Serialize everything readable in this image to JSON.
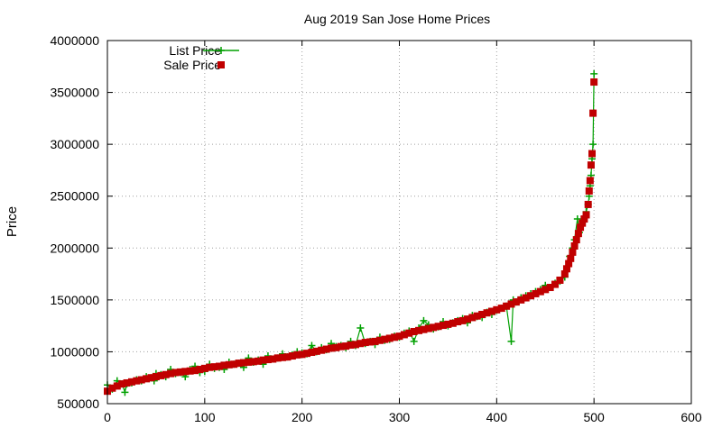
{
  "chart_data": {
    "type": "scatter",
    "title": "Aug 2019 San Jose Home Prices",
    "xlabel": "",
    "ylabel": "Price",
    "xlim": [
      0,
      600
    ],
    "ylim": [
      500000,
      4000000
    ],
    "x_ticks": [
      0,
      100,
      200,
      300,
      400,
      500,
      600
    ],
    "x_tick_labels": [
      "0",
      "100",
      "200",
      "300",
      "400",
      "500",
      "600"
    ],
    "y_ticks": [
      500000,
      1000000,
      1500000,
      2000000,
      2500000,
      3000000,
      3500000,
      4000000
    ],
    "y_tick_labels": [
      "500000",
      "1000000",
      "1500000",
      "2000000",
      "2500000",
      "3000000",
      "3500000",
      "4000000"
    ],
    "grid": true,
    "legend_position": "top-left",
    "series": [
      {
        "name": "List Price",
        "color": "#00a000",
        "marker": "plus",
        "line": true,
        "x": [
          0,
          5,
          10,
          15,
          18,
          20,
          25,
          30,
          35,
          40,
          45,
          48,
          50,
          55,
          60,
          65,
          70,
          75,
          80,
          85,
          90,
          95,
          100,
          105,
          110,
          115,
          120,
          125,
          130,
          135,
          140,
          145,
          150,
          155,
          160,
          165,
          170,
          175,
          180,
          185,
          190,
          195,
          200,
          205,
          210,
          215,
          220,
          225,
          230,
          235,
          240,
          245,
          250,
          255,
          260,
          265,
          270,
          275,
          280,
          285,
          290,
          295,
          300,
          305,
          310,
          315,
          320,
          325,
          330,
          335,
          340,
          345,
          350,
          355,
          360,
          365,
          370,
          375,
          380,
          385,
          390,
          395,
          400,
          405,
          410,
          415,
          417,
          420,
          425,
          430,
          435,
          440,
          445,
          450,
          455,
          460,
          465,
          470,
          472,
          475,
          478,
          480,
          483,
          485,
          488,
          490,
          492,
          494,
          495,
          496,
          497,
          498,
          499,
          500
        ],
        "y": [
          680000,
          640000,
          720000,
          690000,
          610000,
          690000,
          700000,
          730000,
          720000,
          760000,
          750000,
          720000,
          790000,
          780000,
          760000,
          830000,
          790000,
          800000,
          760000,
          830000,
          860000,
          800000,
          810000,
          880000,
          840000,
          850000,
          830000,
          900000,
          880000,
          890000,
          850000,
          940000,
          900000,
          920000,
          880000,
          960000,
          930000,
          940000,
          980000,
          950000,
          970000,
          1000000,
          990000,
          980000,
          1060000,
          1000000,
          1040000,
          1020000,
          1080000,
          1050000,
          1060000,
          1040000,
          1100000,
          1060000,
          1230000,
          1080000,
          1100000,
          1070000,
          1140000,
          1110000,
          1120000,
          1150000,
          1140000,
          1180000,
          1200000,
          1100000,
          1230000,
          1300000,
          1260000,
          1220000,
          1240000,
          1290000,
          1250000,
          1280000,
          1300000,
          1320000,
          1280000,
          1350000,
          1340000,
          1330000,
          1380000,
          1360000,
          1400000,
          1420000,
          1440000,
          1100000,
          1500000,
          1480000,
          1520000,
          1540000,
          1560000,
          1580000,
          1600000,
          1640000,
          1620000,
          1660000,
          1680000,
          1720000,
          1800000,
          1920000,
          2000000,
          2080000,
          2280000,
          2150000,
          2260000,
          2300000,
          2350000,
          2420000,
          2500000,
          2600000,
          2700000,
          2860000,
          3000000,
          3680000
        ]
      },
      {
        "name": "Sale Price",
        "color": "#c00000",
        "marker": "square",
        "line": false,
        "x": [
          0,
          5,
          10,
          15,
          20,
          25,
          30,
          35,
          40,
          45,
          50,
          55,
          60,
          65,
          70,
          75,
          80,
          85,
          90,
          95,
          100,
          105,
          110,
          115,
          120,
          125,
          130,
          135,
          140,
          145,
          150,
          155,
          160,
          165,
          170,
          175,
          180,
          185,
          190,
          195,
          200,
          205,
          210,
          215,
          220,
          225,
          230,
          235,
          240,
          245,
          250,
          255,
          260,
          265,
          270,
          275,
          280,
          285,
          290,
          295,
          300,
          305,
          310,
          315,
          320,
          325,
          330,
          335,
          340,
          345,
          350,
          355,
          360,
          365,
          370,
          375,
          380,
          385,
          390,
          395,
          400,
          405,
          410,
          415,
          420,
          425,
          430,
          435,
          440,
          445,
          450,
          455,
          460,
          465,
          470,
          472,
          474,
          476,
          478,
          480,
          482,
          484,
          486,
          488,
          490,
          492,
          494,
          495,
          496,
          497,
          498,
          499,
          500
        ],
        "y": [
          620000,
          650000,
          670000,
          690000,
          700000,
          710000,
          720000,
          730000,
          740000,
          750000,
          760000,
          770000,
          780000,
          790000,
          800000,
          805000,
          810000,
          815000,
          820000,
          830000,
          840000,
          850000,
          855000,
          860000,
          870000,
          875000,
          880000,
          890000,
          895000,
          900000,
          905000,
          910000,
          920000,
          925000,
          930000,
          940000,
          945000,
          950000,
          960000,
          970000,
          975000,
          985000,
          995000,
          1005000,
          1015000,
          1025000,
          1035000,
          1040000,
          1050000,
          1055000,
          1065000,
          1070000,
          1080000,
          1090000,
          1095000,
          1100000,
          1110000,
          1120000,
          1130000,
          1140000,
          1150000,
          1165000,
          1180000,
          1195000,
          1205000,
          1215000,
          1225000,
          1235000,
          1245000,
          1255000,
          1265000,
          1275000,
          1290000,
          1300000,
          1315000,
          1330000,
          1345000,
          1360000,
          1375000,
          1390000,
          1405000,
          1420000,
          1440000,
          1460000,
          1480000,
          1500000,
          1520000,
          1540000,
          1560000,
          1580000,
          1600000,
          1620000,
          1650000,
          1690000,
          1750000,
          1800000,
          1850000,
          1900000,
          1960000,
          2020000,
          2080000,
          2140000,
          2200000,
          2240000,
          2280000,
          2320000,
          2420000,
          2550000,
          2650000,
          2800000,
          2910000,
          3300000,
          3600000
        ]
      }
    ]
  }
}
